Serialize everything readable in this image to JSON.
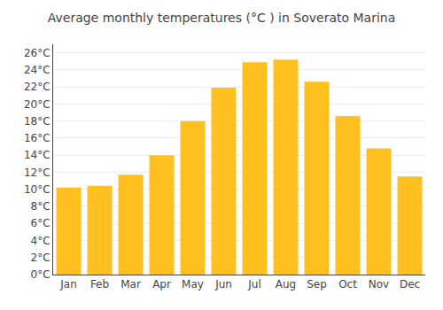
{
  "chart_data": {
    "type": "bar",
    "title": "Average monthly temperatures (°C ) in Soverato Marina",
    "categories": [
      "Jan",
      "Feb",
      "Mar",
      "Apr",
      "May",
      "Jun",
      "Jul",
      "Aug",
      "Sep",
      "Oct",
      "Nov",
      "Dec"
    ],
    "values": [
      10.2,
      10.4,
      11.7,
      14.0,
      18.0,
      21.9,
      24.9,
      25.2,
      22.6,
      18.6,
      14.8,
      11.5
    ],
    "color": "#FFC020",
    "ylim": [
      0,
      27
    ],
    "yticks": [
      {
        "value": 0,
        "label": "0°C"
      },
      {
        "value": 2,
        "label": "2°C"
      },
      {
        "value": 4,
        "label": "4°C"
      },
      {
        "value": 6,
        "label": "6°C"
      },
      {
        "value": 8,
        "label": "8°C"
      },
      {
        "value": 10,
        "label": "10°C"
      },
      {
        "value": 12,
        "label": "12°C"
      },
      {
        "value": 14,
        "label": "14°C"
      },
      {
        "value": 16,
        "label": "16°C"
      },
      {
        "value": 18,
        "label": "18°C"
      },
      {
        "value": 20,
        "label": "20°C"
      },
      {
        "value": 22,
        "label": "22°C"
      },
      {
        "value": 24,
        "label": "24°C"
      },
      {
        "value": 26,
        "label": "26°C"
      }
    ],
    "grid": true
  }
}
